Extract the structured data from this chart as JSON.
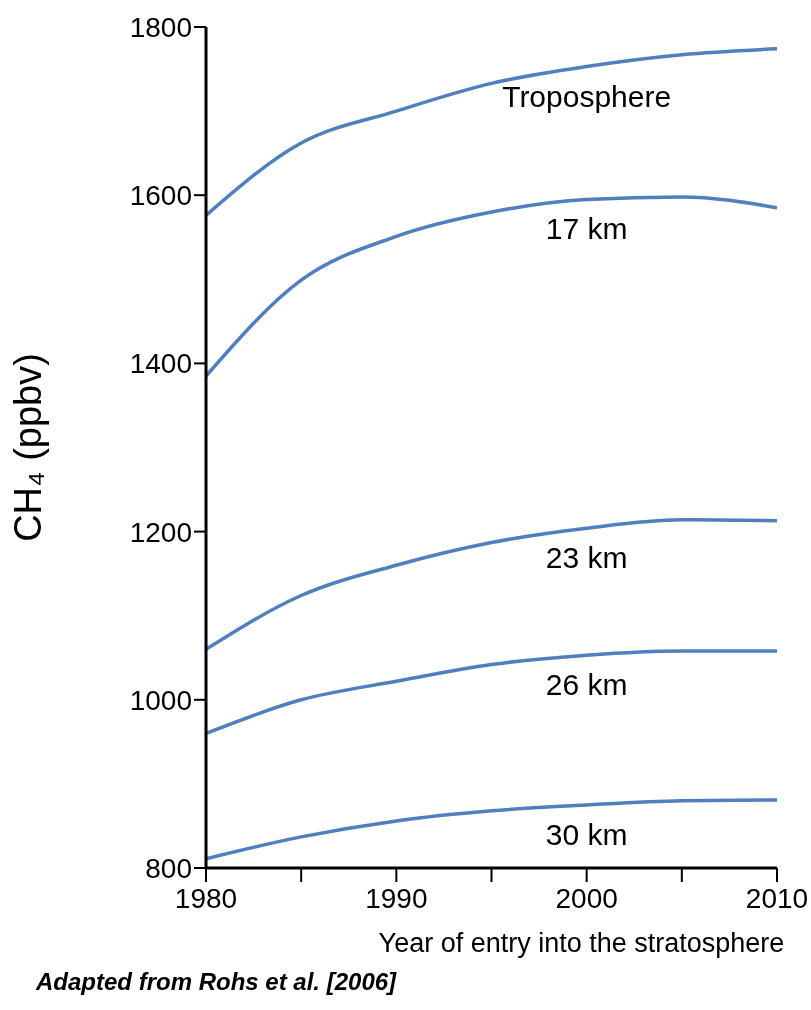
{
  "chart_data": {
    "type": "line",
    "xlabel": "Year of entry into the stratosphere",
    "ylabel": "CH₄ (ppbv)",
    "x": [
      1980,
      1985,
      1990,
      1995,
      2000,
      2005,
      2010
    ],
    "series": [
      {
        "name": "Troposphere",
        "color": "#4f7fbf",
        "values": [
          1576,
          1662,
          1700,
          1733,
          1753,
          1767,
          1774
        ]
      },
      {
        "name": "17 km",
        "color": "#4f7fbf",
        "values": [
          1385,
          1499,
          1551,
          1580,
          1595,
          1598,
          1585
        ]
      },
      {
        "name": "23 km",
        "color": "#4f7fbf",
        "values": [
          1060,
          1124,
          1160,
          1187,
          1204,
          1214,
          1213
        ]
      },
      {
        "name": "26 km",
        "color": "#4f7fbf",
        "values": [
          960,
          1000,
          1022,
          1042,
          1053,
          1058,
          1058
        ]
      },
      {
        "name": "30 km",
        "color": "#4f7fbf",
        "values": [
          811,
          837,
          856,
          868,
          875,
          880,
          881
        ]
      }
    ],
    "xlim": [
      1980,
      2010
    ],
    "xticks": [
      1980,
      {
        "value": 1985,
        "label": null
      },
      1990,
      {
        "value": 1995,
        "label": null
      },
      2000,
      {
        "value": 2005,
        "label": null
      },
      2010
    ],
    "ylim": [
      800,
      1800
    ],
    "yticks": [
      800,
      1000,
      1200,
      1400,
      1600,
      1800
    ],
    "grid": false,
    "legend": false,
    "marker": "none",
    "line_style": "solid",
    "annotations": [
      "Adapted from Rohs et al. [2006]"
    ]
  }
}
